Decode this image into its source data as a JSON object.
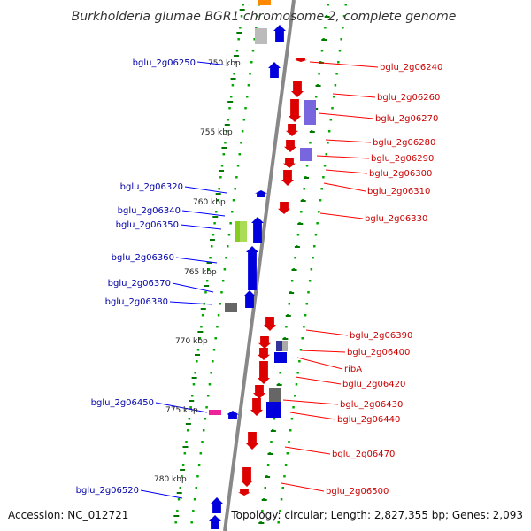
{
  "title": "Burkholderia glumae BGR1 chromosome 2, complete genome",
  "accession": "Accession: NC_012721",
  "topology": "Topology: circular; Length: 2,827,355 bp; Genes: 2,093",
  "colors": {
    "forward": "#dd0000",
    "reverse": "#0000dd",
    "backbone": "#888888",
    "tick_major": "#007700",
    "dots": "#00aa00"
  },
  "scale_ticks": [
    "750 kbp",
    "755 kbp",
    "760 kbp",
    "765 kbp",
    "770 kbp",
    "775 kbp",
    "780 kbp"
  ],
  "genes_reverse": [
    "bglu_2g06250",
    "bglu_2g06320",
    "bglu_2g06340",
    "bglu_2g06350",
    "bglu_2g06360",
    "bglu_2g06370",
    "bglu_2g06380",
    "bglu_2g06450",
    "bglu_2g06520"
  ],
  "genes_forward": [
    "bglu_2g06240",
    "bglu_2g06260",
    "bglu_2g06270",
    "bglu_2g06280",
    "bglu_2g06290",
    "bglu_2g06300",
    "bglu_2g06310",
    "bglu_2g06330",
    "bglu_2g06390",
    "bglu_2g06400",
    "ribA",
    "bglu_2g06420",
    "bglu_2g06430",
    "bglu_2g06440",
    "bglu_2g06470",
    "bglu_2g06500"
  ]
}
